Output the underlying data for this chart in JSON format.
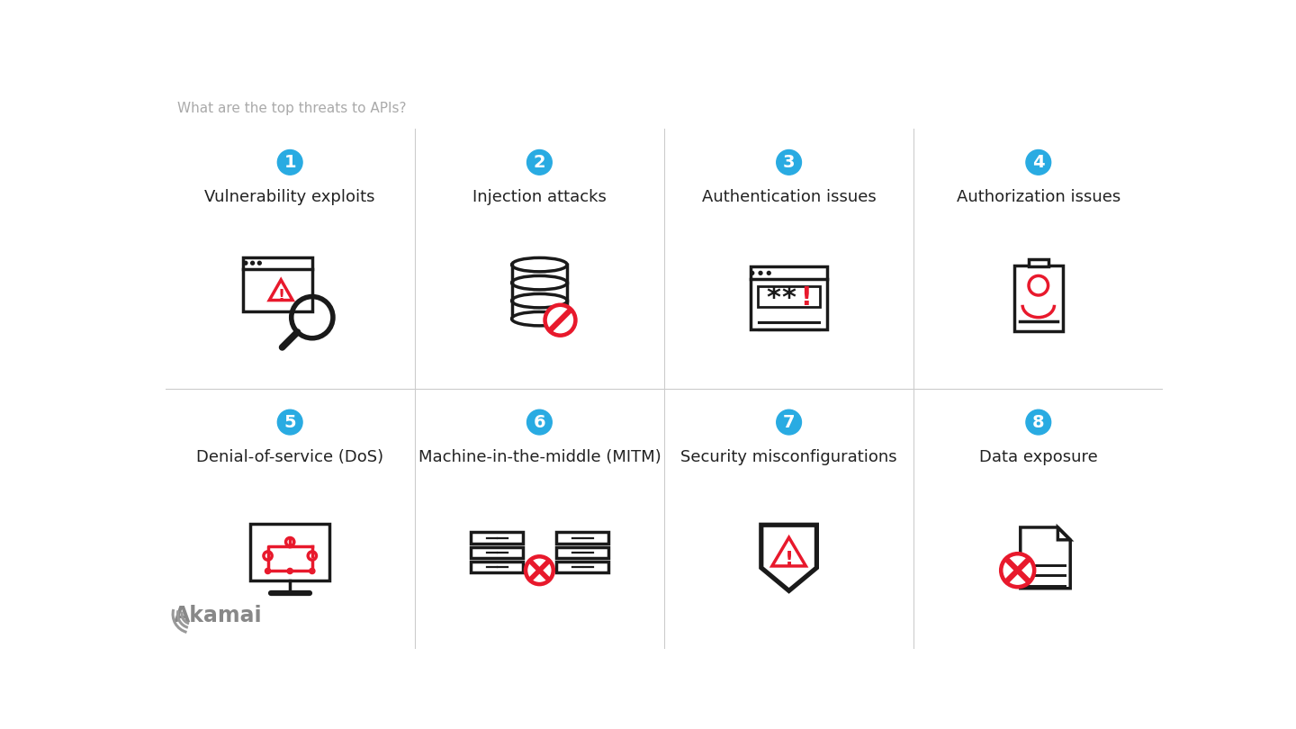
{
  "title": "What are the top threats to APIs?",
  "title_color": "#aaaaaa",
  "title_fontsize": 11,
  "background_color": "#ffffff",
  "grid_color": "#cccccc",
  "blue_circle_color": "#29abe2",
  "threats": [
    {
      "num": "1",
      "label": "Vulnerability exploits",
      "row": 0,
      "col": 0
    },
    {
      "num": "2",
      "label": "Injection attacks",
      "row": 0,
      "col": 1
    },
    {
      "num": "3",
      "label": "Authentication issues",
      "row": 0,
      "col": 2
    },
    {
      "num": "4",
      "label": "Authorization issues",
      "row": 0,
      "col": 3
    },
    {
      "num": "5",
      "label": "Denial-of-service (DoS)",
      "row": 1,
      "col": 0
    },
    {
      "num": "6",
      "label": "Machine-in-the-middle (MITM)",
      "row": 1,
      "col": 1
    },
    {
      "num": "7",
      "label": "Security misconfigurations",
      "row": 1,
      "col": 2
    },
    {
      "num": "8",
      "label": "Data exposure",
      "row": 1,
      "col": 3
    }
  ],
  "icon_color": "#1a1a1a",
  "red_color": "#e8192c",
  "label_fontsize": 13,
  "num_fontsize": 14
}
